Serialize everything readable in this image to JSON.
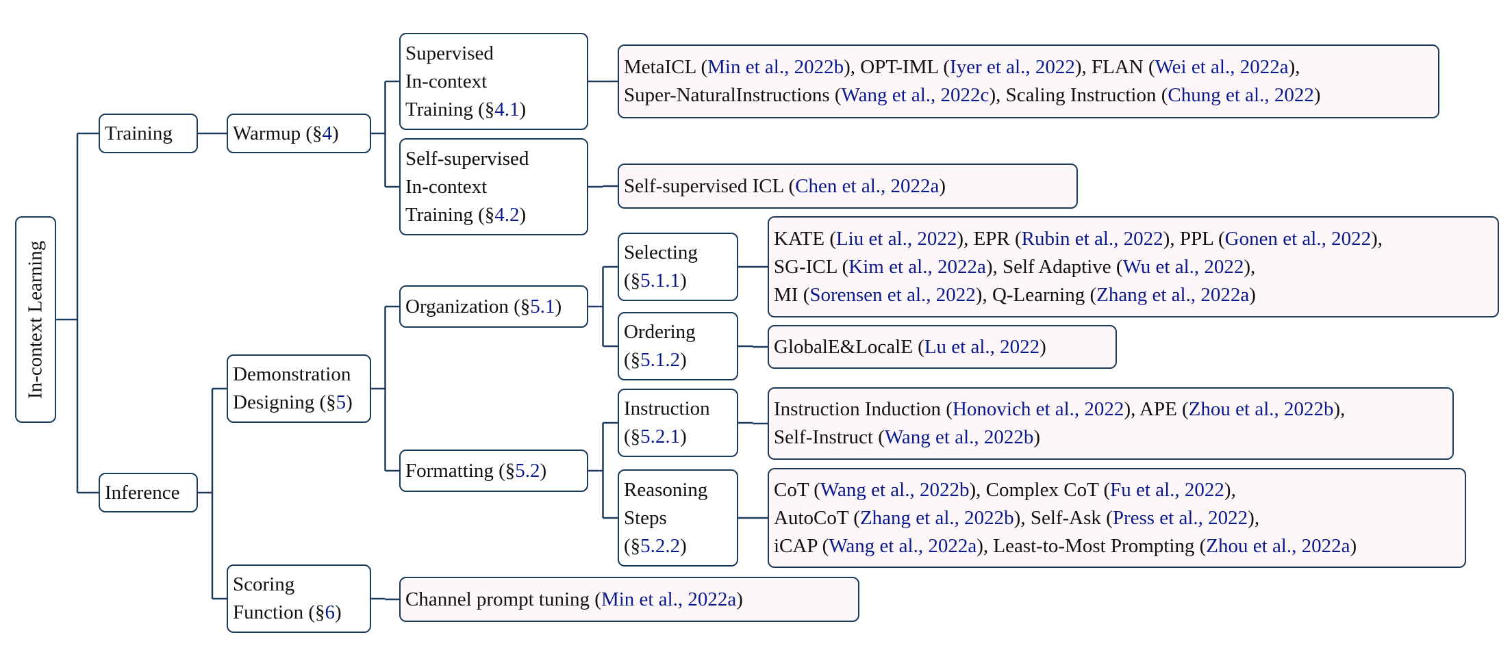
{
  "colors": {
    "border": "#1b3a5c",
    "link": "#0a1a8c",
    "text": "#111111",
    "leaf_fill": "#fdf7f9"
  },
  "nodes": [
    {
      "id": "root",
      "name": "root-in-context-learning",
      "parent": null,
      "lines": [
        [
          {
            "t": "In-context Learning"
          }
        ]
      ]
    },
    {
      "id": "training",
      "name": "node-training",
      "parent": "root",
      "lines": [
        [
          {
            "t": "Training"
          }
        ]
      ]
    },
    {
      "id": "inference",
      "name": "node-inference",
      "parent": "root",
      "lines": [
        [
          {
            "t": "Inference"
          }
        ]
      ]
    },
    {
      "id": "warmup",
      "name": "node-warmup",
      "parent": "training",
      "lines": [
        [
          {
            "t": "Warmup (§"
          },
          {
            "t": "4",
            "ref": true
          },
          {
            "t": ")"
          }
        ]
      ]
    },
    {
      "id": "sit",
      "name": "node-supervised-in-context-training",
      "parent": "warmup",
      "lines": [
        [
          {
            "t": "Supervised"
          }
        ],
        [
          {
            "t": "In-context"
          }
        ],
        [
          {
            "t": "Training (§"
          },
          {
            "t": "4.1",
            "ref": true
          },
          {
            "t": ")"
          }
        ]
      ]
    },
    {
      "id": "ssit",
      "name": "node-self-supervised-in-context-training",
      "parent": "warmup",
      "lines": [
        [
          {
            "t": "Self-supervised"
          }
        ],
        [
          {
            "t": "In-context"
          }
        ],
        [
          {
            "t": "Training (§"
          },
          {
            "t": "4.2",
            "ref": true
          },
          {
            "t": ")"
          }
        ]
      ]
    },
    {
      "id": "sit_leaf",
      "name": "leaf-supervised-training-methods",
      "parent": "sit",
      "leaf": true,
      "lines": [
        [
          {
            "t": "MetaICL ("
          },
          {
            "t": "Min et al., 2022b",
            "ref": true
          },
          {
            "t": "), OPT-IML ("
          },
          {
            "t": "Iyer et al., 2022",
            "ref": true
          },
          {
            "t": "), FLAN ("
          },
          {
            "t": "Wei et al., 2022a",
            "ref": true
          },
          {
            "t": "),"
          }
        ],
        [
          {
            "t": "Super-NaturalInstructions ("
          },
          {
            "t": "Wang et al., 2022c",
            "ref": true
          },
          {
            "t": "), Scaling Instruction ("
          },
          {
            "t": "Chung et al., 2022",
            "ref": true
          },
          {
            "t": ")"
          }
        ]
      ]
    },
    {
      "id": "ssit_leaf",
      "name": "leaf-self-supervised-icl",
      "parent": "ssit",
      "leaf": true,
      "lines": [
        [
          {
            "t": "Self-supervised ICL  ("
          },
          {
            "t": "Chen et al., 2022a",
            "ref": true
          },
          {
            "t": ")"
          }
        ]
      ]
    },
    {
      "id": "demo",
      "name": "node-demonstration-designing",
      "parent": "inference",
      "lines": [
        [
          {
            "t": "Demonstration"
          }
        ],
        [
          {
            "t": "Designing (§"
          },
          {
            "t": "5",
            "ref": true
          },
          {
            "t": ")"
          }
        ]
      ]
    },
    {
      "id": "scoring",
      "name": "node-scoring-function",
      "parent": "inference",
      "lines": [
        [
          {
            "t": "Scoring"
          }
        ],
        [
          {
            "t": "Function (§"
          },
          {
            "t": "6",
            "ref": true
          },
          {
            "t": ")"
          }
        ]
      ]
    },
    {
      "id": "org",
      "name": "node-organization",
      "parent": "demo",
      "lines": [
        [
          {
            "t": "Organization (§"
          },
          {
            "t": "5.1",
            "ref": true
          },
          {
            "t": ")"
          }
        ]
      ]
    },
    {
      "id": "fmt",
      "name": "node-formatting",
      "parent": "demo",
      "lines": [
        [
          {
            "t": "Formatting (§"
          },
          {
            "t": "5.2",
            "ref": true
          },
          {
            "t": ")"
          }
        ]
      ]
    },
    {
      "id": "sel",
      "name": "node-selecting",
      "parent": "org",
      "lines": [
        [
          {
            "t": "Selecting"
          }
        ],
        [
          {
            "t": "(§"
          },
          {
            "t": "5.1.1",
            "ref": true
          },
          {
            "t": ")"
          }
        ]
      ]
    },
    {
      "id": "ord",
      "name": "node-ordering",
      "parent": "org",
      "lines": [
        [
          {
            "t": "Ordering"
          }
        ],
        [
          {
            "t": "(§"
          },
          {
            "t": "5.1.2",
            "ref": true
          },
          {
            "t": ")"
          }
        ]
      ]
    },
    {
      "id": "ins",
      "name": "node-instruction",
      "parent": "fmt",
      "lines": [
        [
          {
            "t": "Instruction"
          }
        ],
        [
          {
            "t": "(§"
          },
          {
            "t": "5.2.1",
            "ref": true
          },
          {
            "t": ")"
          }
        ]
      ]
    },
    {
      "id": "rea",
      "name": "node-reasoning-steps",
      "parent": "fmt",
      "lines": [
        [
          {
            "t": "Reasoning"
          }
        ],
        [
          {
            "t": "Steps"
          }
        ],
        [
          {
            "t": "(§"
          },
          {
            "t": "5.2.2",
            "ref": true
          },
          {
            "t": ")"
          }
        ]
      ]
    },
    {
      "id": "sel_leaf",
      "name": "leaf-selecting-methods",
      "parent": "sel",
      "leaf": true,
      "lines": [
        [
          {
            "t": "KATE ("
          },
          {
            "t": "Liu et al., 2022",
            "ref": true
          },
          {
            "t": "), EPR ("
          },
          {
            "t": "Rubin et al., 2022",
            "ref": true
          },
          {
            "t": "), PPL ("
          },
          {
            "t": "Gonen et al., 2022",
            "ref": true
          },
          {
            "t": "),"
          }
        ],
        [
          {
            "t": "SG-ICL ("
          },
          {
            "t": "Kim et al., 2022a",
            "ref": true
          },
          {
            "t": "), Self Adaptive ("
          },
          {
            "t": "Wu et al., 2022",
            "ref": true
          },
          {
            "t": "),"
          }
        ],
        [
          {
            "t": "MI ("
          },
          {
            "t": "Sorensen et al., 2022",
            "ref": true
          },
          {
            "t": "), Q-Learning ("
          },
          {
            "t": "Zhang et al., 2022a",
            "ref": true
          },
          {
            "t": ")"
          }
        ]
      ]
    },
    {
      "id": "ord_leaf",
      "name": "leaf-ordering-methods",
      "parent": "ord",
      "leaf": true,
      "lines": [
        [
          {
            "t": "GlobalE&LocalE ("
          },
          {
            "t": "Lu et al., 2022",
            "ref": true
          },
          {
            "t": ")"
          }
        ]
      ]
    },
    {
      "id": "ins_leaf",
      "name": "leaf-instruction-methods",
      "parent": "ins",
      "leaf": true,
      "lines": [
        [
          {
            "t": "Instruction Induction ("
          },
          {
            "t": "Honovich et al., 2022",
            "ref": true
          },
          {
            "t": "), APE ("
          },
          {
            "t": "Zhou et al., 2022b",
            "ref": true
          },
          {
            "t": "),"
          }
        ],
        [
          {
            "t": "Self-Instruct ("
          },
          {
            "t": "Wang et al., 2022b",
            "ref": true
          },
          {
            "t": ")"
          }
        ]
      ]
    },
    {
      "id": "rea_leaf",
      "name": "leaf-reasoning-methods",
      "parent": "rea",
      "leaf": true,
      "lines": [
        [
          {
            "t": "CoT ("
          },
          {
            "t": "Wang et al., 2022b",
            "ref": true
          },
          {
            "t": "), Complex CoT ("
          },
          {
            "t": "Fu et al., 2022",
            "ref": true
          },
          {
            "t": "),"
          }
        ],
        [
          {
            "t": "AutoCoT ("
          },
          {
            "t": "Zhang et al., 2022b",
            "ref": true
          },
          {
            "t": "), Self-Ask ("
          },
          {
            "t": "Press et al., 2022",
            "ref": true
          },
          {
            "t": "),"
          }
        ],
        [
          {
            "t": "iCAP ("
          },
          {
            "t": "Wang et al., 2022a",
            "ref": true
          },
          {
            "t": "), Least-to-Most Prompting ("
          },
          {
            "t": "Zhou et al., 2022a",
            "ref": true
          },
          {
            "t": ")"
          }
        ]
      ]
    },
    {
      "id": "scoring_leaf",
      "name": "leaf-channel-prompt-tuning",
      "parent": "scoring",
      "leaf": true,
      "lines": [
        [
          {
            "t": "Channel prompt tuning  ("
          },
          {
            "t": "Min et al., 2022a",
            "ref": true
          },
          {
            "t": ")"
          }
        ]
      ]
    }
  ]
}
